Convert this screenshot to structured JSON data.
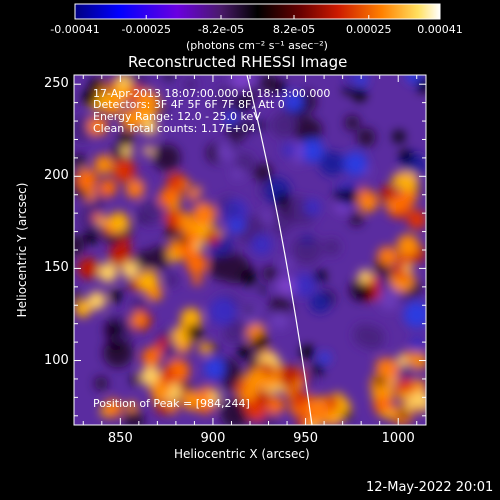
{
  "chart_data": {
    "type": "heatmap",
    "title": "Reconstructed RHESSI Image",
    "xlabel": "Heliocentric X (arcsec)",
    "ylabel": "Heliocentric Y (arcsec)",
    "xlim": [
      825,
      1015
    ],
    "ylim": [
      65,
      255
    ],
    "xticks": [
      "850",
      "900",
      "950",
      "1000"
    ],
    "yticks": [
      "100",
      "150",
      "200",
      "250"
    ],
    "colorbar": {
      "ticks": [
        "-0.00041",
        "-0.00025",
        "-8.2e-05",
        "8.2e-05",
        "0.00025",
        "0.00041"
      ],
      "units": "(photons cm⁻² s⁻¹ asec⁻²)",
      "range": [
        -0.00041,
        0.00041
      ]
    },
    "annotations": {
      "time": "17-Apr-2013 18:07:00.000 to 18:13:00.000",
      "detectors": "Detectors: 3F 4F 5F 6F 7F 8F, Att 0",
      "energy": "Energy Range: 12.0 - 25.0 keV",
      "clean": "Clean    Total counts: 1.17E+04",
      "peak": "Position of Peak = [984,244]"
    },
    "footer": "12-May-2022 20:01"
  }
}
